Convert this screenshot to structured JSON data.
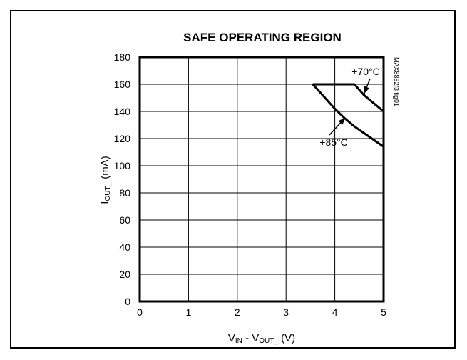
{
  "chart_data": {
    "type": "line",
    "title": "SAFE OPERATING REGION",
    "side_label": "MAX8882/3 fig01",
    "xlabel": {
      "v1": "V",
      "sub1": "IN",
      "mid": " - V",
      "sub2": "OUT_",
      "end": " (V)"
    },
    "ylabel": {
      "v1": "I",
      "sub1": "OUT_",
      "end": " (mA)"
    },
    "xlim": [
      0,
      5
    ],
    "ylim": [
      0,
      180
    ],
    "x_ticks": [
      "0",
      "1",
      "2",
      "3",
      "4",
      "5"
    ],
    "y_ticks": [
      "0",
      "20",
      "40",
      "60",
      "80",
      "100",
      "120",
      "140",
      "160",
      "180"
    ],
    "x_tick_values": [
      0,
      1,
      2,
      3,
      4,
      5
    ],
    "y_tick_values": [
      0,
      20,
      40,
      60,
      80,
      100,
      120,
      140,
      160,
      180
    ],
    "grid": true,
    "series": [
      {
        "name": "+70°C",
        "x": [
          3.55,
          4.4,
          4.6,
          4.8,
          5.0
        ],
        "y": [
          160,
          160,
          152,
          146,
          140
        ]
      },
      {
        "name": "+85°C",
        "x": [
          3.55,
          3.8,
          4.0,
          4.2,
          4.4,
          4.6,
          4.8,
          5.0
        ],
        "y": [
          160,
          150,
          142,
          135,
          129,
          124,
          119,
          114
        ]
      }
    ],
    "annotations": [
      {
        "text": "+70°C",
        "x": 4.6,
        "y": 152
      },
      {
        "text": "+85°C",
        "x": 4.2,
        "y": 136
      }
    ]
  }
}
